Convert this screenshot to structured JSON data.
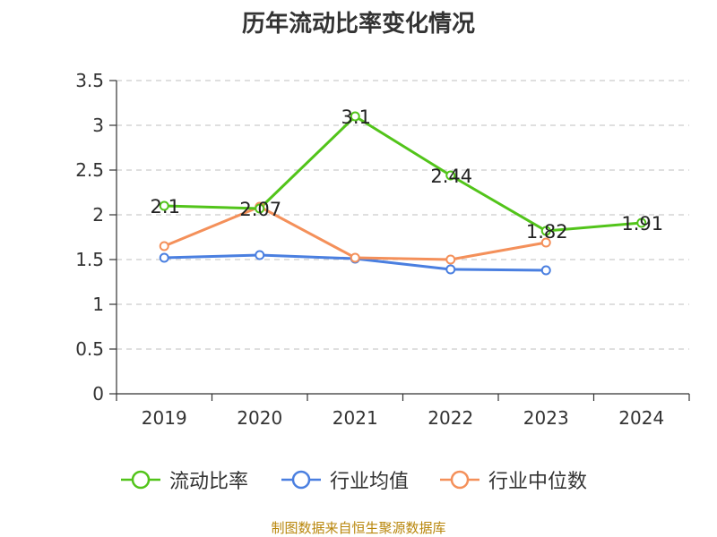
{
  "title": "历年流动比率变化情况",
  "source": "制图数据来自恒生聚源数据库",
  "chart_data": {
    "type": "line",
    "categories": [
      "2019",
      "2020",
      "2021",
      "2022",
      "2023",
      "2024"
    ],
    "ylim": [
      0,
      3.5
    ],
    "yticks": [
      "0",
      "0.5",
      "1",
      "1.5",
      "2",
      "2.5",
      "3",
      "3.5"
    ],
    "grid": true,
    "legend_position": "bottom",
    "series": [
      {
        "name": "流动比率",
        "color": "#52c41a",
        "values": [
          2.1,
          2.07,
          3.1,
          2.44,
          1.82,
          1.91
        ],
        "labels": [
          "2.1",
          "2.07",
          "3.1",
          "2.44",
          "1.82",
          "1.91"
        ]
      },
      {
        "name": "行业均值",
        "color": "#4a7fe0",
        "values": [
          1.52,
          1.55,
          1.51,
          1.39,
          1.38,
          null
        ]
      },
      {
        "name": "行业中位数",
        "color": "#f4905a",
        "values": [
          1.65,
          2.09,
          1.52,
          1.5,
          1.69,
          null
        ]
      }
    ]
  }
}
